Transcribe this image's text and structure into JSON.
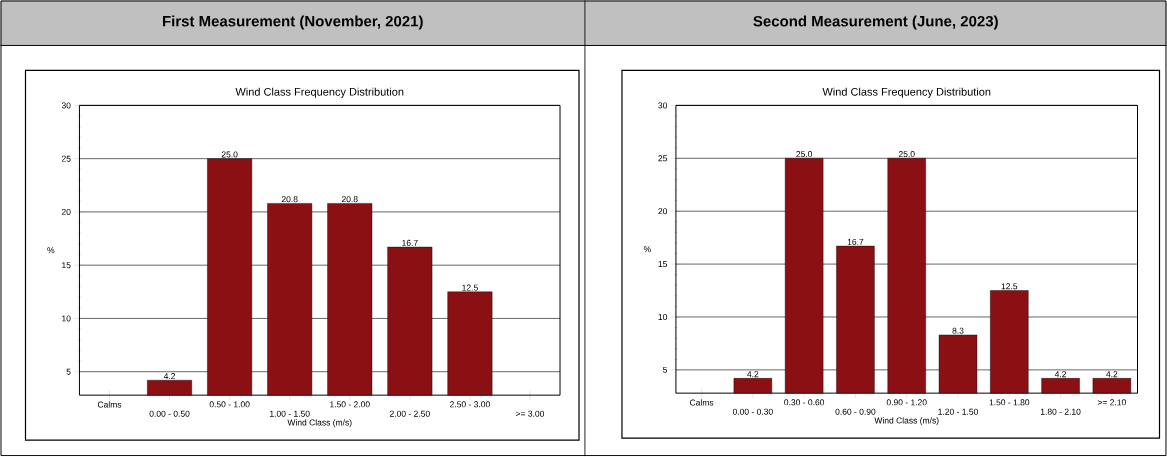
{
  "chart_data": [
    {
      "type": "bar",
      "title": "First Measurement (November, 2021)",
      "subtitle": "Wind Class Frequency Distribution",
      "xlabel": "Wind Class (m/s)",
      "ylabel": "%",
      "categories": [
        "Calms",
        "0.00 - 0.50",
        "0.50 - 1.00",
        "1.00 - 1.50",
        "1.50 - 2.00",
        "2.00 - 2.50",
        "2.50 - 3.00",
        ">= 3.00"
      ],
      "values": [
        null,
        4.2,
        25.0,
        20.8,
        20.8,
        16.7,
        12.5,
        null
      ],
      "value_labels": [
        null,
        "4.2",
        "25.0",
        "20.8",
        "20.8",
        "16.7",
        "12.5",
        null
      ],
      "color": "#8b1014",
      "ylim": [
        2.8,
        30
      ],
      "yticks": [
        5,
        10,
        15,
        20,
        25,
        30
      ],
      "grid": "y"
    },
    {
      "type": "bar",
      "title": "Second Measurement (June, 2023)",
      "subtitle": "Wind Class Frequency Distribution",
      "xlabel": "Wind Class (m/s)",
      "ylabel": "%",
      "categories": [
        "Calms",
        "0.00 - 0.30",
        "0.30 - 0.60",
        "0.60 - 0.90",
        "0.90 - 1.20",
        "1.20 - 1.50",
        "1.50 - 1.80",
        "1.80 - 2.10",
        ">= 2.10"
      ],
      "values": [
        null,
        4.2,
        25.0,
        16.7,
        25.0,
        8.3,
        12.5,
        4.2,
        4.2
      ],
      "value_labels": [
        null,
        "4.2",
        "25.0",
        "16.7",
        "25.0",
        "8.3",
        "12.5",
        "4.2",
        "4.2"
      ],
      "color": "#8b1014",
      "ylim": [
        2.8,
        30
      ],
      "yticks": [
        5,
        10,
        15,
        20,
        25,
        30
      ],
      "grid": "y"
    }
  ]
}
